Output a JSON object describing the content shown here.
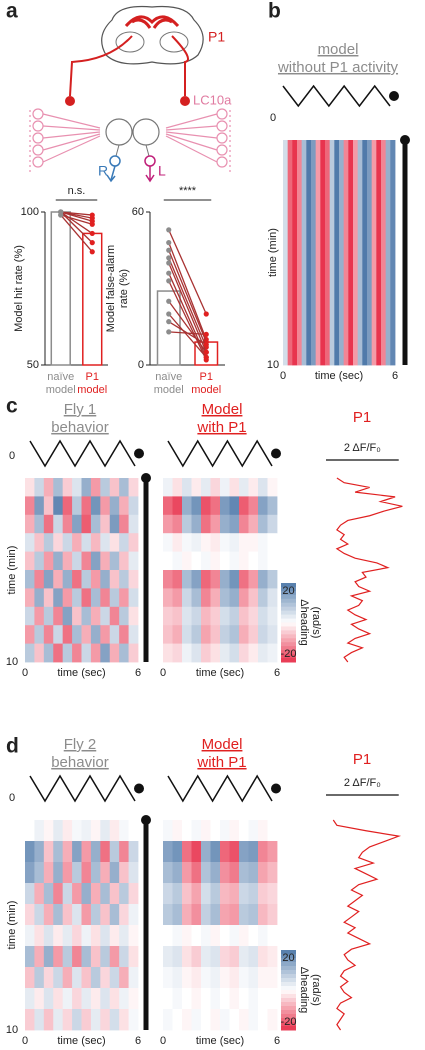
{
  "panel_labels": [
    "a",
    "b",
    "c",
    "d"
  ],
  "schematic": {
    "p1_label": "P1",
    "lc10a_label": "LC10a",
    "r_label": "R",
    "l_label": "L"
  },
  "chart_data": [
    {
      "type": "bar",
      "ylabel": [
        "Model hit rate (%)"
      ],
      "categories": [
        [
          "naïve",
          "model"
        ],
        [
          "P1",
          "model"
        ]
      ],
      "values": [
        100,
        93
      ],
      "colors": [
        "#8c8c8c",
        "#e02020"
      ],
      "ylim": [
        50,
        100
      ],
      "yticks": [
        50,
        100
      ],
      "paired_values": [
        [
          100,
          99
        ],
        [
          100,
          98
        ],
        [
          100,
          97
        ],
        [
          99,
          96
        ],
        [
          100,
          93
        ],
        [
          100,
          90
        ],
        [
          99,
          87
        ]
      ],
      "annotation": "n.s."
    },
    {
      "type": "bar",
      "ylabel": [
        "Model false-alarm",
        "rate (%)"
      ],
      "categories": [
        [
          "naïve",
          "model"
        ],
        [
          "P1",
          "model"
        ]
      ],
      "values": [
        29,
        9
      ],
      "colors": [
        "#8c8c8c",
        "#e02020"
      ],
      "ylim": [
        0,
        60
      ],
      "yticks": [
        0,
        60
      ],
      "paired_values": [
        [
          53,
          20
        ],
        [
          48,
          10
        ],
        [
          45,
          9
        ],
        [
          42,
          7
        ],
        [
          40,
          5
        ],
        [
          36,
          3
        ],
        [
          33,
          2
        ],
        [
          25,
          5
        ],
        [
          20,
          3
        ],
        [
          17,
          8
        ],
        [
          13,
          12
        ]
      ],
      "annotation": "****"
    },
    {
      "type": "heatmap",
      "title": [
        "model",
        "without P1 activity"
      ],
      "title_color": "#8c8c8c",
      "underline": true,
      "xlabel": "time (sec)",
      "ylabel": "time (min)",
      "xlim": [
        0,
        6
      ],
      "xticks": [
        0,
        6
      ],
      "ylim": [
        0,
        10
      ],
      "yticks": [
        0,
        10
      ],
      "clim": [
        -20,
        20
      ],
      "values": [
        [
          5,
          -15,
          -20,
          -12,
          10,
          20,
          15,
          -10,
          -20,
          -15,
          8,
          20,
          12,
          -12,
          -20,
          -10,
          10,
          20,
          15,
          -10,
          -20,
          -12,
          12,
          18
        ]
      ]
    },
    {
      "type": "heatmap",
      "title": [
        "Fly 1",
        "behavior"
      ],
      "title_color": "#8c8c8c",
      "underline": true,
      "xlabel": "time (sec)",
      "ylabel": "time (min)",
      "xlim": [
        0,
        6
      ],
      "xticks": [
        0,
        6
      ],
      "ylim": [
        0,
        10
      ],
      "yticks": [
        0,
        10
      ],
      "clim": [
        -20,
        20
      ],
      "values": [
        [
          -3,
          6,
          -8,
          10,
          -5,
          4,
          12,
          -10,
          8,
          -6,
          10,
          -4
        ],
        [
          -12,
          15,
          -6,
          18,
          -15,
          8,
          -14,
          16,
          -10,
          12,
          -8,
          6
        ],
        [
          -8,
          10,
          -14,
          6,
          -12,
          14,
          -16,
          10,
          -6,
          15,
          -12,
          4
        ],
        [
          4,
          -6,
          8,
          -4,
          6,
          -8,
          5,
          -7,
          4,
          -3,
          6,
          -5
        ],
        [
          -6,
          8,
          -10,
          12,
          -8,
          6,
          -12,
          14,
          -8,
          10,
          -6,
          3
        ],
        [
          10,
          -12,
          14,
          -8,
          12,
          -14,
          8,
          -10,
          12,
          -6,
          8,
          -4
        ],
        [
          -8,
          12,
          -6,
          14,
          -10,
          8,
          -14,
          10,
          -12,
          8,
          -10,
          5
        ],
        [
          6,
          -10,
          8,
          -12,
          14,
          -6,
          10,
          -8,
          6,
          -12,
          8,
          -3
        ],
        [
          -10,
          8,
          -12,
          6,
          -14,
          10,
          -8,
          12,
          -10,
          6,
          -12,
          4
        ],
        [
          8,
          -6,
          10,
          -14,
          8,
          -12,
          6,
          -10,
          14,
          -8,
          10,
          -5
        ]
      ]
    },
    {
      "type": "heatmap",
      "title": [
        "Model",
        "with P1"
      ],
      "title_color": "#e02020",
      "underline": true,
      "xlabel": "time (sec)",
      "xlim": [
        0,
        6
      ],
      "xticks": [
        0,
        6
      ],
      "ylim": [
        0,
        10
      ],
      "clim": [
        -20,
        20
      ],
      "colorbar": {
        "ticks": [
          20,
          -20
        ],
        "label": [
          "Δheading",
          "(rad/s)"
        ]
      },
      "values": [
        [
          2,
          -3,
          4,
          -2,
          3,
          -4,
          2,
          -3,
          3,
          -2,
          4,
          -1
        ],
        [
          -15,
          -18,
          12,
          16,
          -17,
          -14,
          15,
          18,
          -16,
          -12,
          14,
          10
        ],
        [
          -10,
          -12,
          8,
          12,
          -14,
          -10,
          12,
          14,
          -12,
          -8,
          10,
          6
        ],
        [
          1,
          -2,
          1,
          2,
          -1,
          -2,
          1,
          2,
          -1,
          -1,
          1,
          0
        ],
        [
          0,
          1,
          -1,
          0,
          1,
          -1,
          0,
          1,
          -1,
          0,
          1,
          0
        ],
        [
          -12,
          -14,
          10,
          14,
          -15,
          -12,
          12,
          16,
          -14,
          -10,
          12,
          8
        ],
        [
          -8,
          -10,
          6,
          10,
          -12,
          -8,
          10,
          12,
          -10,
          -6,
          8,
          4
        ],
        [
          -5,
          -6,
          4,
          6,
          -7,
          -5,
          5,
          7,
          -6,
          -4,
          5,
          3
        ],
        [
          -6,
          -8,
          5,
          8,
          -9,
          -6,
          7,
          9,
          -8,
          -5,
          6,
          4
        ],
        [
          -3,
          -4,
          2,
          4,
          -5,
          -3,
          3,
          5,
          -4,
          -2,
          3,
          2
        ]
      ]
    },
    {
      "type": "trace",
      "title": [
        "P1"
      ],
      "title_color": "#e02020",
      "color": "#e02020",
      "xlim": [
        0,
        2.2
      ],
      "ylim": [
        0,
        10
      ],
      "scale_bar": {
        "value": 2,
        "label": "2 ΔF/F₀"
      },
      "values": [
        0.3,
        0.5,
        1.2,
        0.8,
        1.9,
        1.5,
        2.1,
        1.6,
        1.2,
        0.6,
        0.4,
        0.3,
        0.5,
        0.4,
        0.6,
        0.3,
        0.5,
        0.8,
        1.4,
        1.7,
        1.0,
        1.1,
        0.8,
        0.9,
        1.2,
        0.7,
        1.0,
        0.9,
        0.6,
        0.8,
        1.1,
        0.7,
        0.9,
        1.2,
        0.8,
        0.6,
        1.0,
        0.7,
        0.5,
        0.6
      ]
    },
    {
      "type": "heatmap",
      "title": [
        "Fly 2",
        "behavior"
      ],
      "title_color": "#8c8c8c",
      "underline": true,
      "xlabel": "time (sec)",
      "ylabel": "time (min)",
      "xlim": [
        0,
        6
      ],
      "xticks": [
        0,
        6
      ],
      "ylim": [
        0,
        10
      ],
      "yticks": [
        0,
        10
      ],
      "clim": [
        -20,
        20
      ],
      "values": [
        [
          0,
          2,
          -1,
          3,
          -2,
          1,
          2,
          -1,
          3,
          -2,
          1,
          0
        ],
        [
          16,
          12,
          -6,
          10,
          -8,
          14,
          -10,
          12,
          -14,
          8,
          -12,
          6
        ],
        [
          14,
          10,
          -8,
          12,
          -10,
          8,
          -12,
          10,
          -8,
          12,
          -6,
          4
        ],
        [
          6,
          -8,
          10,
          -12,
          6,
          -10,
          12,
          -8,
          10,
          -6,
          8,
          -4
        ],
        [
          -4,
          6,
          -8,
          10,
          -6,
          4,
          -10,
          8,
          -6,
          10,
          -4,
          2
        ],
        [
          2,
          -3,
          4,
          -2,
          3,
          -4,
          2,
          -3,
          4,
          -2,
          3,
          -1
        ],
        [
          10,
          -8,
          12,
          -10,
          8,
          -12,
          10,
          -6,
          8,
          -10,
          6,
          -3
        ],
        [
          -6,
          8,
          -4,
          6,
          -8,
          4,
          -6,
          8,
          -4,
          6,
          -8,
          2
        ],
        [
          3,
          -2,
          4,
          -3,
          2,
          -4,
          3,
          -2,
          4,
          -3,
          2,
          -1
        ],
        [
          -5,
          4,
          -6,
          3,
          -4,
          6,
          -5,
          3,
          -4,
          5,
          -3,
          1
        ]
      ]
    },
    {
      "type": "heatmap",
      "title": [
        "Model",
        "with P1"
      ],
      "title_color": "#e02020",
      "underline": true,
      "xlabel": "time (sec)",
      "xlim": [
        0,
        6
      ],
      "xticks": [
        0,
        6
      ],
      "ylim": [
        0,
        10
      ],
      "clim": [
        -20,
        20
      ],
      "colorbar": {
        "ticks": [
          20,
          -20
        ],
        "label": [
          "Δheading",
          "(rad/s)"
        ]
      },
      "values": [
        [
          1,
          -1,
          0,
          1,
          -1,
          0,
          1,
          -1,
          0,
          1,
          -1,
          0
        ],
        [
          14,
          16,
          -14,
          -18,
          12,
          16,
          -15,
          -17,
          14,
          15,
          -12,
          -10
        ],
        [
          10,
          12,
          -10,
          -14,
          9,
          12,
          -11,
          -13,
          10,
          11,
          -9,
          -7
        ],
        [
          6,
          8,
          -6,
          -9,
          5,
          8,
          -7,
          -8,
          6,
          7,
          -5,
          -4
        ],
        [
          8,
          10,
          -8,
          -11,
          7,
          10,
          -9,
          -10,
          8,
          9,
          -7,
          -5
        ],
        [
          0,
          1,
          -1,
          0,
          1,
          -1,
          0,
          1,
          -1,
          0,
          1,
          0
        ],
        [
          3,
          4,
          -3,
          -5,
          3,
          4,
          -4,
          -5,
          3,
          4,
          -3,
          -2
        ],
        [
          1,
          2,
          -1,
          -2,
          1,
          2,
          -1,
          -2,
          1,
          2,
          -1,
          -1
        ],
        [
          0,
          1,
          0,
          -1,
          0,
          1,
          0,
          -1,
          0,
          1,
          0,
          0
        ],
        [
          1,
          0,
          -1,
          1,
          0,
          -1,
          1,
          0,
          -1,
          1,
          0,
          -1
        ]
      ]
    },
    {
      "type": "trace",
      "title": [
        "P1"
      ],
      "title_color": "#e02020",
      "color": "#e02020",
      "xlim": [
        0,
        2.2
      ],
      "ylim": [
        0,
        10
      ],
      "scale_bar": {
        "value": 2,
        "label": "2 ΔF/F₀"
      },
      "values": [
        0.2,
        0.3,
        1.1,
        2.0,
        1.6,
        1.2,
        1.0,
        0.9,
        1.3,
        0.8,
        1.1,
        1.4,
        0.9,
        0.7,
        1.0,
        0.8,
        0.6,
        0.9,
        0.7,
        0.5,
        0.8,
        0.6,
        0.9,
        1.2,
        0.7,
        0.5,
        0.6,
        0.8,
        0.5,
        0.4,
        0.6,
        0.4,
        0.5,
        0.7,
        0.4,
        0.3,
        0.5,
        0.4,
        0.3,
        0.4
      ]
    }
  ]
}
